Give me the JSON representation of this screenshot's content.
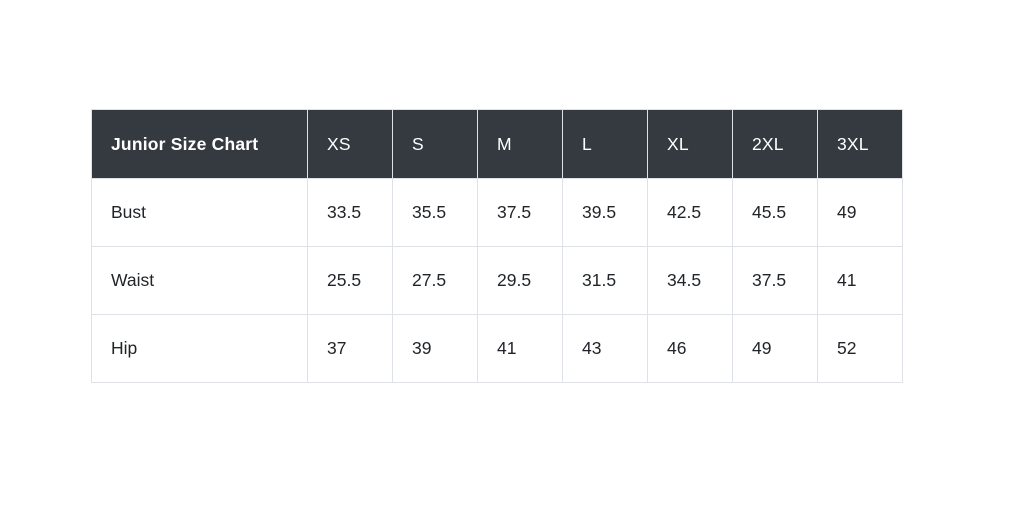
{
  "page": {
    "background": "#ffffff"
  },
  "colors": {
    "header_bg": "#343a40",
    "header_text": "#ffffff",
    "body_text": "#212529",
    "border": "#dee2e6"
  },
  "chart_data": {
    "type": "table",
    "title": "Junior Size Chart",
    "columns": [
      "XS",
      "S",
      "M",
      "L",
      "XL",
      "2XL",
      "3XL"
    ],
    "rows": [
      {
        "label": "Bust",
        "values": [
          "33.5",
          "35.5",
          "37.5",
          "39.5",
          "42.5",
          "45.5",
          "49"
        ]
      },
      {
        "label": "Waist",
        "values": [
          "25.5",
          "27.5",
          "29.5",
          "31.5",
          "34.5",
          "37.5",
          "41"
        ]
      },
      {
        "label": "Hip",
        "values": [
          "37",
          "39",
          "41",
          "43",
          "46",
          "49",
          "52"
        ]
      }
    ]
  }
}
